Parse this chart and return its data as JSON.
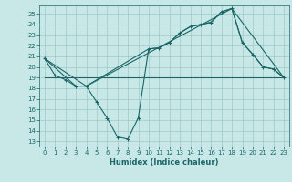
{
  "xlabel": "Humidex (Indice chaleur)",
  "background_color": "#c8e8e8",
  "grid_color": "#a0c8c8",
  "line_color": "#1a6666",
  "axes_facecolor": "#c8e8e8",
  "xlim": [
    -0.5,
    23.5
  ],
  "ylim": [
    12.5,
    25.8
  ],
  "yticks": [
    13,
    14,
    15,
    16,
    17,
    18,
    19,
    20,
    21,
    22,
    23,
    24,
    25
  ],
  "xticks": [
    0,
    1,
    2,
    3,
    4,
    5,
    6,
    7,
    8,
    9,
    10,
    11,
    12,
    13,
    14,
    15,
    16,
    17,
    18,
    19,
    20,
    21,
    22,
    23
  ],
  "series_main": {
    "x": [
      0,
      1,
      2,
      3,
      4,
      5,
      6,
      7,
      8,
      9,
      10,
      11,
      12,
      13,
      14,
      15,
      16,
      17,
      18,
      19,
      20,
      21,
      22,
      23
    ],
    "y": [
      20.8,
      19.2,
      18.8,
      18.2,
      18.2,
      16.7,
      15.2,
      13.4,
      13.2,
      15.2,
      21.7,
      21.8,
      22.3,
      23.2,
      23.8,
      24.0,
      24.2,
      25.2,
      25.5,
      22.3,
      21.2,
      20.0,
      19.8,
      19.0
    ]
  },
  "series_upper": {
    "x": [
      0,
      3,
      4,
      10,
      11,
      12,
      13,
      14,
      15,
      16,
      17,
      18,
      19,
      20,
      21,
      22,
      23
    ],
    "y": [
      20.8,
      18.2,
      18.2,
      21.7,
      21.8,
      22.3,
      23.2,
      23.8,
      24.0,
      24.2,
      25.2,
      25.5,
      22.3,
      21.2,
      20.0,
      19.8,
      19.0
    ]
  },
  "series_triangle": {
    "x": [
      0,
      4,
      18,
      23
    ],
    "y": [
      20.8,
      18.2,
      25.5,
      19.0
    ]
  },
  "series_flat": {
    "x": [
      0,
      23
    ],
    "y": [
      19.0,
      19.0
    ]
  }
}
